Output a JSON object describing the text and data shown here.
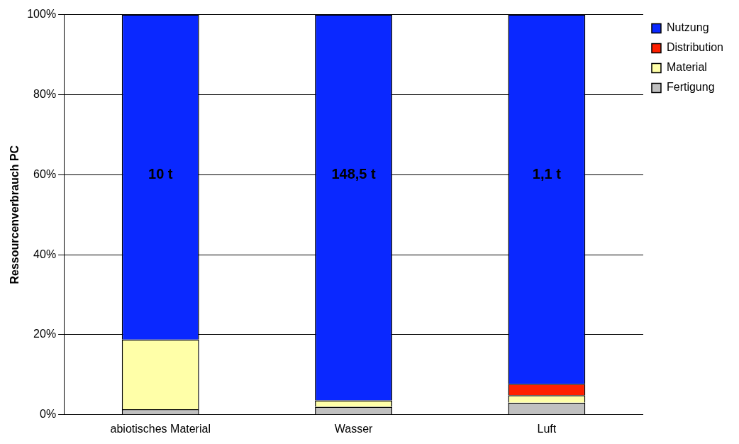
{
  "chart_data": {
    "type": "bar",
    "stacked": true,
    "ylabel": "Ressourcenverbrauch PC",
    "categories": [
      "abiotisches Material",
      "Wasser",
      "Luft"
    ],
    "series": [
      {
        "name": "Fertigung",
        "color": "#c0c0c0",
        "values": [
          1.4,
          2.0,
          3.0
        ]
      },
      {
        "name": "Material",
        "color": "#ffffa8",
        "values": [
          17.4,
          1.6,
          1.9
        ]
      },
      {
        "name": "Distribution",
        "color": "#ff2000",
        "values": [
          0,
          0,
          2.8
        ]
      },
      {
        "name": "Nutzung",
        "color": "#0a28ff",
        "values": [
          81.2,
          96.4,
          92.3
        ]
      }
    ],
    "ylim": [
      0,
      100
    ],
    "yticks": [
      {
        "value": 0,
        "label": "0%"
      },
      {
        "value": 20,
        "label": "20%"
      },
      {
        "value": 40,
        "label": "40%"
      },
      {
        "value": 60,
        "label": "60%"
      },
      {
        "value": 80,
        "label": "80%"
      },
      {
        "value": 100,
        "label": "100%"
      }
    ],
    "grid": "y",
    "legend": "right",
    "annotations": [
      "10 t",
      "148,5 t",
      "1,1 t"
    ]
  }
}
